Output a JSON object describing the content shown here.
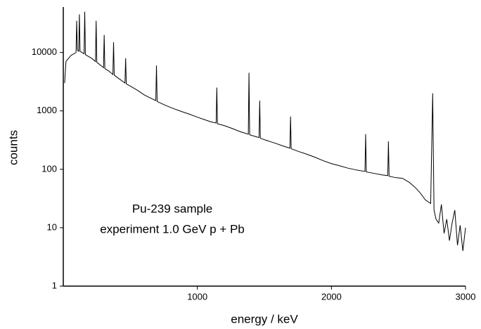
{
  "chart_data": {
    "type": "line",
    "x_label": "energy / keV",
    "y_label": "counts",
    "annotations": [
      "Pu-239 sample",
      "experiment 1.0 GeV p + Pb"
    ],
    "color": "#000000",
    "log_y": true,
    "xlim": [
      0,
      3000
    ],
    "xticks": [
      1000,
      2000,
      3000
    ],
    "ylim": [
      1,
      60000
    ],
    "yticks": [
      1,
      10,
      100,
      1000,
      10000
    ],
    "x": [
      10,
      20,
      40,
      60,
      80,
      95,
      100,
      105,
      115,
      120,
      125,
      140,
      155,
      160,
      165,
      190,
      210,
      240,
      245,
      250,
      280,
      300,
      305,
      310,
      340,
      370,
      375,
      380,
      420,
      460,
      465,
      470,
      520,
      560,
      600,
      640,
      690,
      695,
      700,
      760,
      820,
      880,
      940,
      1000,
      1060,
      1100,
      1140,
      1145,
      1150,
      1200,
      1260,
      1320,
      1380,
      1385,
      1390,
      1440,
      1460,
      1465,
      1470,
      1520,
      1580,
      1640,
      1690,
      1695,
      1700,
      1760,
      1820,
      1880,
      1940,
      2000,
      2060,
      2120,
      2180,
      2250,
      2255,
      2260,
      2320,
      2380,
      2420,
      2425,
      2430,
      2480,
      2530,
      2580,
      2620,
      2660,
      2700,
      2740,
      2755,
      2765,
      2780,
      2800,
      2820,
      2840,
      2860,
      2880,
      2900,
      2920,
      2940,
      2960,
      2980,
      3000
    ],
    "values": [
      3000,
      7000,
      8000,
      9000,
      9500,
      10000,
      35000,
      11000,
      10500,
      45000,
      10500,
      10000,
      9500,
      50000,
      9200,
      8500,
      8000,
      7000,
      35000,
      6800,
      6000,
      5500,
      20000,
      5300,
      4800,
      4200,
      15000,
      4100,
      3500,
      3000,
      8000,
      2900,
      2500,
      2200,
      1900,
      1700,
      1500,
      6000,
      1450,
      1250,
      1100,
      980,
      880,
      780,
      700,
      650,
      620,
      2500,
      600,
      560,
      500,
      440,
      400,
      4500,
      390,
      360,
      350,
      1500,
      340,
      310,
      280,
      250,
      230,
      800,
      225,
      200,
      180,
      160,
      140,
      125,
      115,
      105,
      98,
      92,
      400,
      90,
      85,
      80,
      78,
      300,
      76,
      72,
      70,
      60,
      50,
      40,
      30,
      26,
      2000,
      20,
      14,
      12,
      25,
      8,
      14,
      6,
      12,
      20,
      5,
      11,
      4,
      10
    ]
  }
}
